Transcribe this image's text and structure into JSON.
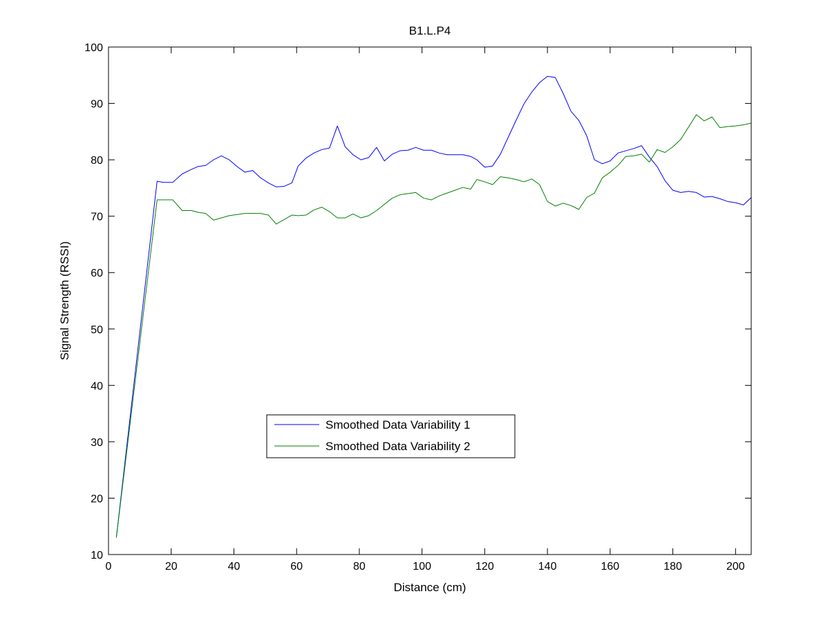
{
  "chart_data": {
    "type": "line",
    "title": "B1.L.P4",
    "xlabel": "Distance (cm)",
    "ylabel": "Signal Strength (RSSI)",
    "xlim": [
      0,
      205
    ],
    "ylim": [
      10,
      100
    ],
    "xticks": [
      0,
      20,
      40,
      60,
      80,
      100,
      120,
      140,
      160,
      180,
      200
    ],
    "yticks": [
      10,
      20,
      30,
      40,
      50,
      60,
      70,
      80,
      90,
      100
    ],
    "grid": false,
    "legend_position": "lower-center",
    "series": [
      {
        "name": "Smoothed Data Variability 1",
        "color": "#0000ff",
        "points": [
          [
            2.5,
            13.0
          ],
          [
            15.5,
            76.2
          ],
          [
            17.5,
            76.0
          ],
          [
            20.5,
            76.0
          ],
          [
            23.5,
            77.5
          ],
          [
            26.5,
            78.3
          ],
          [
            28.5,
            78.8
          ],
          [
            31.0,
            79.0
          ],
          [
            33.5,
            80.0
          ],
          [
            36.0,
            80.7
          ],
          [
            38.5,
            80.0
          ],
          [
            41.0,
            78.8
          ],
          [
            43.5,
            77.8
          ],
          [
            46.0,
            78.1
          ],
          [
            48.5,
            76.8
          ],
          [
            51.0,
            75.9
          ],
          [
            53.5,
            75.2
          ],
          [
            56.0,
            75.3
          ],
          [
            58.5,
            75.9
          ],
          [
            60.5,
            78.9
          ],
          [
            63.0,
            80.3
          ],
          [
            65.5,
            81.2
          ],
          [
            68.0,
            81.8
          ],
          [
            70.5,
            82.1
          ],
          [
            73.0,
            86.0
          ],
          [
            75.5,
            82.3
          ],
          [
            78.0,
            80.9
          ],
          [
            80.5,
            80.0
          ],
          [
            83.0,
            80.4
          ],
          [
            85.5,
            82.2
          ],
          [
            88.0,
            79.8
          ],
          [
            90.5,
            81.0
          ],
          [
            93.0,
            81.6
          ],
          [
            95.5,
            81.7
          ],
          [
            98.0,
            82.2
          ],
          [
            100.5,
            81.7
          ],
          [
            103.0,
            81.7
          ],
          [
            105.5,
            81.2
          ],
          [
            108.0,
            80.9
          ],
          [
            110.5,
            80.9
          ],
          [
            113.0,
            80.9
          ],
          [
            115.5,
            80.6
          ],
          [
            117.5,
            80.0
          ],
          [
            120.0,
            78.7
          ],
          [
            122.5,
            78.9
          ],
          [
            125.0,
            81.0
          ],
          [
            127.5,
            84.0
          ],
          [
            130.0,
            87.0
          ],
          [
            132.5,
            89.9
          ],
          [
            135.0,
            92.0
          ],
          [
            137.5,
            93.7
          ],
          [
            140.0,
            94.8
          ],
          [
            142.5,
            94.6
          ],
          [
            145.0,
            91.8
          ],
          [
            147.5,
            88.6
          ],
          [
            150.0,
            87.0
          ],
          [
            152.5,
            84.3
          ],
          [
            155.0,
            80.0
          ],
          [
            157.5,
            79.3
          ],
          [
            160.0,
            79.8
          ],
          [
            162.5,
            81.2
          ],
          [
            165.0,
            81.6
          ],
          [
            167.5,
            82.0
          ],
          [
            170.0,
            82.5
          ],
          [
            172.5,
            80.5
          ],
          [
            175.0,
            78.8
          ],
          [
            177.5,
            76.3
          ],
          [
            180.0,
            74.6
          ],
          [
            182.5,
            74.2
          ],
          [
            185.0,
            74.4
          ],
          [
            187.5,
            74.2
          ],
          [
            190.0,
            73.4
          ],
          [
            192.5,
            73.5
          ],
          [
            195.0,
            73.1
          ],
          [
            197.5,
            72.6
          ],
          [
            200.0,
            72.4
          ],
          [
            202.5,
            72.0
          ],
          [
            205.0,
            73.3
          ]
        ]
      },
      {
        "name": "Smoothed Data Variability 2",
        "color": "#008000",
        "points": [
          [
            2.5,
            13.0
          ],
          [
            15.5,
            72.9
          ],
          [
            17.5,
            72.9
          ],
          [
            20.5,
            72.9
          ],
          [
            23.5,
            71.0
          ],
          [
            26.5,
            71.0
          ],
          [
            28.5,
            70.7
          ],
          [
            31.0,
            70.5
          ],
          [
            33.5,
            69.3
          ],
          [
            36.0,
            69.7
          ],
          [
            38.5,
            70.1
          ],
          [
            41.0,
            70.3
          ],
          [
            43.5,
            70.5
          ],
          [
            46.0,
            70.5
          ],
          [
            48.5,
            70.5
          ],
          [
            51.0,
            70.2
          ],
          [
            53.5,
            68.6
          ],
          [
            56.0,
            69.4
          ],
          [
            58.5,
            70.2
          ],
          [
            60.5,
            70.1
          ],
          [
            63.0,
            70.2
          ],
          [
            65.5,
            71.1
          ],
          [
            68.0,
            71.6
          ],
          [
            70.5,
            70.8
          ],
          [
            73.0,
            69.7
          ],
          [
            75.5,
            69.7
          ],
          [
            78.0,
            70.4
          ],
          [
            80.5,
            69.7
          ],
          [
            83.0,
            70.1
          ],
          [
            85.5,
            71.0
          ],
          [
            88.0,
            72.1
          ],
          [
            90.5,
            73.2
          ],
          [
            93.0,
            73.8
          ],
          [
            95.5,
            74.0
          ],
          [
            98.0,
            74.2
          ],
          [
            100.5,
            73.2
          ],
          [
            103.0,
            72.9
          ],
          [
            105.5,
            73.6
          ],
          [
            108.0,
            74.1
          ],
          [
            110.5,
            74.6
          ],
          [
            113.0,
            75.1
          ],
          [
            115.5,
            74.8
          ],
          [
            117.5,
            76.5
          ],
          [
            120.0,
            76.1
          ],
          [
            122.5,
            75.6
          ],
          [
            125.0,
            77.0
          ],
          [
            127.5,
            76.8
          ],
          [
            130.0,
            76.5
          ],
          [
            132.5,
            76.1
          ],
          [
            135.0,
            76.6
          ],
          [
            137.5,
            75.6
          ],
          [
            140.0,
            72.6
          ],
          [
            142.5,
            71.8
          ],
          [
            145.0,
            72.3
          ],
          [
            147.5,
            71.9
          ],
          [
            150.0,
            71.2
          ],
          [
            152.5,
            73.3
          ],
          [
            155.0,
            74.1
          ],
          [
            157.5,
            76.8
          ],
          [
            160.0,
            77.8
          ],
          [
            162.5,
            79.0
          ],
          [
            165.0,
            80.6
          ],
          [
            167.5,
            80.7
          ],
          [
            170.0,
            81.0
          ],
          [
            172.5,
            79.6
          ],
          [
            175.0,
            81.8
          ],
          [
            177.5,
            81.3
          ],
          [
            180.0,
            82.3
          ],
          [
            182.5,
            83.6
          ],
          [
            185.0,
            85.8
          ],
          [
            187.5,
            88.0
          ],
          [
            190.0,
            86.9
          ],
          [
            192.5,
            87.6
          ],
          [
            195.0,
            85.7
          ],
          [
            197.5,
            85.9
          ],
          [
            200.0,
            86.0
          ],
          [
            202.5,
            86.2
          ],
          [
            205.0,
            86.5
          ]
        ]
      }
    ]
  }
}
